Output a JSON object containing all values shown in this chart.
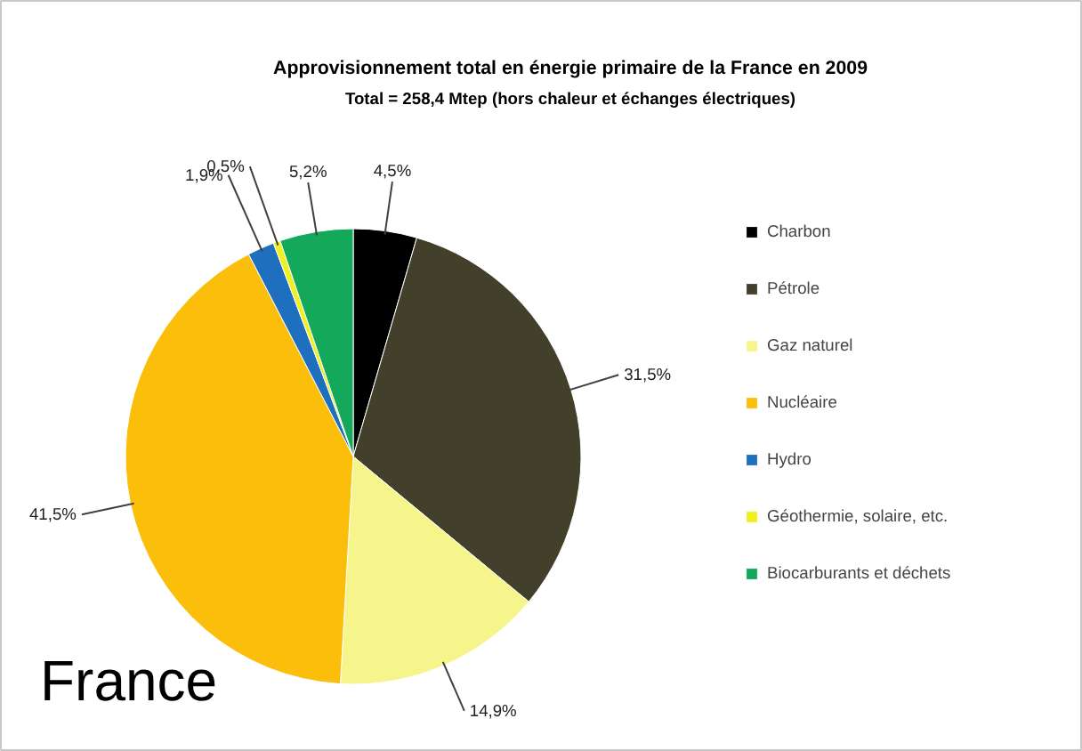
{
  "chart_data": {
    "type": "pie",
    "title": "Approvisionnement total en énergie primaire de la France en 2009",
    "subtitle": "Total = 258,4 Mtep (hors chaleur et échanges électriques)",
    "categories": [
      "Charbon",
      "Pétrole",
      "Gaz naturel",
      "Nucléaire",
      "Hydro",
      "Géothermie, solaire, etc.",
      "Biocarburants et déchets"
    ],
    "values": [
      4.5,
      31.5,
      14.9,
      41.5,
      1.9,
      0.5,
      5.2
    ],
    "value_labels": [
      "4,5%",
      "31,5%",
      "14,9%",
      "41,5%",
      "1,9%",
      "0,5%",
      "5,2%"
    ],
    "colors": [
      "#000000",
      "#423f2a",
      "#f5f58c",
      "#fbbe0a",
      "#1f6fbf",
      "#f0f020",
      "#14a85a"
    ],
    "legend": "right",
    "annotations": [
      "France"
    ]
  }
}
